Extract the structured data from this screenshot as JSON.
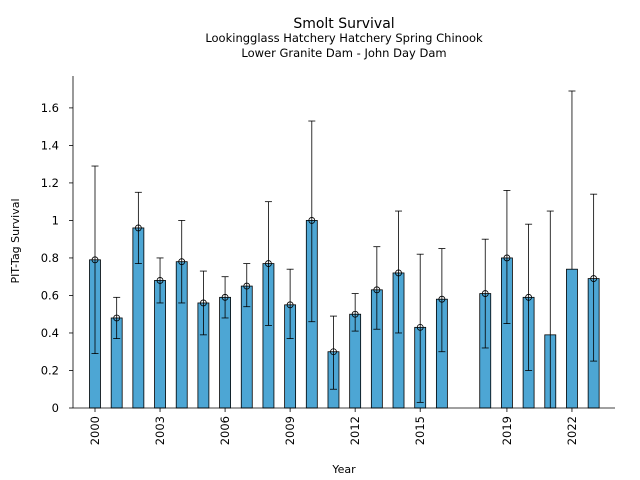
{
  "chart_data": {
    "type": "bar",
    "title": "Smolt Survival",
    "subtitle_lines": [
      "Lookingglass Hatchery Hatchery Spring Chinook",
      "Lower Granite Dam - John Day Dam"
    ],
    "xlabel": "Year",
    "ylabel": "PIT-Tag Survival",
    "ylim": [
      0,
      1.77
    ],
    "yticks": [
      0,
      0.2,
      0.4,
      0.6,
      0.8,
      1,
      1.2,
      1.4,
      1.6
    ],
    "ytick_labels": [
      "0",
      "0.2",
      "0.4",
      "0.6",
      "0.8",
      "1",
      "1.2",
      "1.4",
      "1.6"
    ],
    "xlim": [
      1999.2,
      2023.8
    ],
    "xticks": [
      2000,
      2003,
      2006,
      2009,
      2012,
      2015,
      2019,
      2022
    ],
    "xtick_labels": [
      "2000",
      "2003",
      "2006",
      "2009",
      "2012",
      "2015",
      "2019",
      "2022"
    ],
    "grid": false,
    "bar_color": "#4da6d4",
    "series": [
      {
        "name": "PIT-Tag Survival",
        "points": [
          {
            "year": 2000,
            "value": 0.79,
            "lower": 0.29,
            "upper": 1.29,
            "marker": true
          },
          {
            "year": 2001,
            "value": 0.48,
            "lower": 0.37,
            "upper": 0.59,
            "marker": true
          },
          {
            "year": 2002,
            "value": 0.96,
            "lower": 0.77,
            "upper": 1.15,
            "marker": true
          },
          {
            "year": 2003,
            "value": 0.68,
            "lower": 0.56,
            "upper": 0.8,
            "marker": true
          },
          {
            "year": 2004,
            "value": 0.78,
            "lower": 0.56,
            "upper": 1.0,
            "marker": true
          },
          {
            "year": 2005,
            "value": 0.56,
            "lower": 0.39,
            "upper": 0.73,
            "marker": true
          },
          {
            "year": 2006,
            "value": 0.59,
            "lower": 0.48,
            "upper": 0.7,
            "marker": true
          },
          {
            "year": 2007,
            "value": 0.65,
            "lower": 0.54,
            "upper": 0.77,
            "marker": true
          },
          {
            "year": 2008,
            "value": 0.77,
            "lower": 0.44,
            "upper": 1.1,
            "marker": true
          },
          {
            "year": 2009,
            "value": 0.55,
            "lower": 0.37,
            "upper": 0.74,
            "marker": true
          },
          {
            "year": 2010,
            "value": 1.0,
            "lower": 0.46,
            "upper": 1.53,
            "marker": true
          },
          {
            "year": 2011,
            "value": 0.3,
            "lower": 0.1,
            "upper": 0.49,
            "marker": true
          },
          {
            "year": 2012,
            "value": 0.5,
            "lower": 0.41,
            "upper": 0.61,
            "marker": true
          },
          {
            "year": 2013,
            "value": 0.63,
            "lower": 0.42,
            "upper": 0.86,
            "marker": true
          },
          {
            "year": 2014,
            "value": 0.72,
            "lower": 0.4,
            "upper": 1.05,
            "marker": true
          },
          {
            "year": 2015,
            "value": 0.43,
            "lower": 0.03,
            "upper": 0.82,
            "marker": true
          },
          {
            "year": 2016,
            "value": 0.58,
            "lower": 0.3,
            "upper": 0.85,
            "marker": true
          },
          {
            "year": 2018,
            "value": 0.61,
            "lower": 0.32,
            "upper": 0.9,
            "marker": true
          },
          {
            "year": 2019,
            "value": 0.8,
            "lower": 0.45,
            "upper": 1.16,
            "marker": true
          },
          {
            "year": 2020,
            "value": 0.59,
            "lower": 0.2,
            "upper": 0.98,
            "marker": true
          },
          {
            "year": 2021,
            "value": 0.39,
            "lower": 0.0,
            "upper": 1.05,
            "marker": false
          },
          {
            "year": 2022,
            "value": 0.74,
            "lower": 0.74,
            "upper": 1.69,
            "marker": false
          },
          {
            "year": 2023,
            "value": 0.69,
            "lower": 0.25,
            "upper": 1.14,
            "marker": true
          }
        ]
      }
    ]
  }
}
